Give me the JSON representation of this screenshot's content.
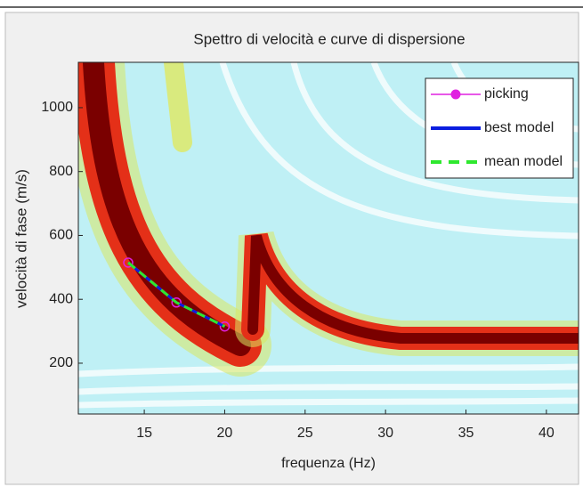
{
  "chart_data": {
    "type": "line",
    "title": "Spettro di velocità e curve di dispersione",
    "x_label": "frequenza (Hz)",
    "y_label": "velocità di fase (m/s)",
    "x": [
      14,
      17,
      20
    ],
    "series": [
      {
        "name": "picking",
        "color": "#e020e0",
        "values": [
          515,
          390,
          315
        ],
        "marker": "circle",
        "dash": false
      },
      {
        "name": "best model",
        "color": "#0a1ee0",
        "values": [
          515,
          390,
          315
        ],
        "marker": null,
        "dash": false
      },
      {
        "name": "mean model",
        "color": "#2ee82e",
        "values": [
          515,
          390,
          315
        ],
        "marker": null,
        "dash": true
      }
    ],
    "xlim": [
      10.9,
      42
    ],
    "xticks": [
      15,
      20,
      25,
      30,
      35,
      40
    ],
    "ylim": [
      41,
      1142
    ],
    "yticks": [
      200,
      400,
      600,
      800,
      1000
    ],
    "legend": "upper right"
  }
}
